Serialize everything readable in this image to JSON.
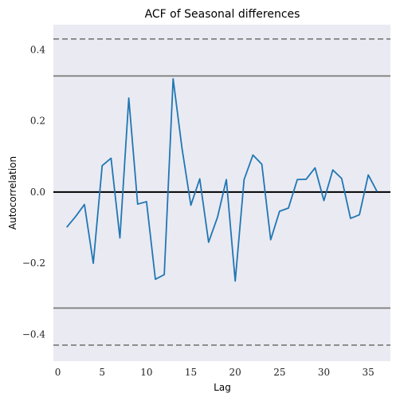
{
  "chart_data": {
    "type": "line",
    "title": "ACF of Seasonal differences",
    "xlabel": "Lag",
    "ylabel": "Autocorrelation",
    "xlim": [
      -0.5,
      37.5
    ],
    "ylim": [
      -0.475,
      0.47
    ],
    "x_ticks": [
      0,
      5,
      10,
      15,
      20,
      25,
      30,
      35
    ],
    "x_tick_labels": [
      "0",
      "5",
      "10",
      "15",
      "20",
      "25",
      "30",
      "35"
    ],
    "y_ticks": [
      0.4,
      0.2,
      0.0,
      -0.2,
      -0.4
    ],
    "y_tick_labels": [
      "0.4",
      "0.2",
      "0.0",
      "−0.2",
      "−0.4"
    ],
    "grid": false,
    "background_color": "#eaeaf2",
    "series": [
      {
        "color": "#1f77b4",
        "x": [
          1,
          2,
          3,
          4,
          5,
          6,
          7,
          8,
          9,
          10,
          11,
          12,
          13,
          14,
          15,
          16,
          17,
          18,
          19,
          20,
          21,
          22,
          23,
          24,
          25,
          26,
          27,
          28,
          29,
          30,
          31,
          32,
          33,
          34,
          35,
          36
        ],
        "values": [
          -0.099,
          -0.069,
          -0.035,
          -0.2,
          0.074,
          0.095,
          -0.129,
          0.264,
          -0.034,
          -0.027,
          -0.245,
          -0.232,
          0.318,
          0.123,
          -0.037,
          0.037,
          -0.141,
          -0.071,
          0.035,
          -0.25,
          0.035,
          0.104,
          0.078,
          -0.134,
          -0.054,
          -0.045,
          0.035,
          0.036,
          0.068,
          -0.024,
          0.062,
          0.038,
          -0.074,
          -0.064,
          0.048,
          0.001
        ]
      }
    ],
    "reference_lines": [
      {
        "y": 0,
        "color": "#000000",
        "style": "solid"
      },
      {
        "y": 0.326,
        "color": "#808080",
        "style": "solid"
      },
      {
        "y": -0.326,
        "color": "#808080",
        "style": "solid"
      },
      {
        "y": 0.43,
        "color": "#808080",
        "style": "dashed"
      },
      {
        "y": -0.43,
        "color": "#808080",
        "style": "dashed"
      }
    ]
  }
}
